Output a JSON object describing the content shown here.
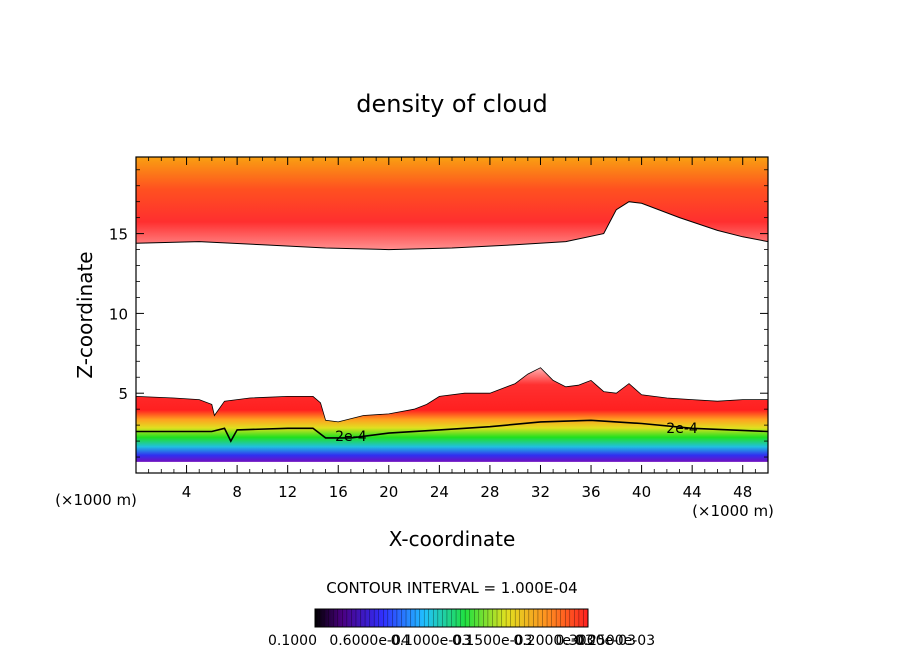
{
  "chart_data": {
    "type": "heatmap",
    "title": "density of cloud",
    "xlabel": "X-coordinate",
    "ylabel": "Z-coordinate",
    "x_unit_label": "(×1000 m)",
    "y_unit_label": "(×1000 m)",
    "xlim": [
      0,
      50
    ],
    "ylim": [
      0,
      19.8
    ],
    "x_ticks": [
      4,
      8,
      12,
      16,
      20,
      24,
      28,
      32,
      36,
      40,
      44,
      48
    ],
    "y_ticks": [
      5,
      10,
      15
    ],
    "contour_interval_label": "CONTOUR INTERVAL = 1.000E-04",
    "contour_line_labels": [
      {
        "text": "2e-4",
        "x": 17.0,
        "z": 2.2
      },
      {
        "text": "2e-4",
        "x": 43.2,
        "z": 2.7
      }
    ],
    "colorbar_labels": [
      "0.1000",
      "0.6000e-04",
      "0.1000e-03",
      "0.1500e-03",
      "0.2000e-03",
      "0.2500e-03",
      "0.3000e-03"
    ],
    "regions": {
      "upper_layer": {
        "top": 19.8,
        "lower_boundary": [
          [
            0,
            14.4
          ],
          [
            5,
            14.5
          ],
          [
            10,
            14.3
          ],
          [
            15,
            14.1
          ],
          [
            20,
            14.0
          ],
          [
            25,
            14.1
          ],
          [
            30,
            14.3
          ],
          [
            34,
            14.5
          ],
          [
            37,
            15.0
          ],
          [
            38,
            16.5
          ],
          [
            39,
            17.0
          ],
          [
            40,
            16.9
          ],
          [
            43,
            16.0
          ],
          [
            46,
            15.2
          ],
          [
            48,
            14.8
          ],
          [
            50,
            14.5
          ]
        ]
      },
      "lower_layer": {
        "bottom": 0.7,
        "upper_boundary": [
          [
            0,
            4.8
          ],
          [
            3,
            4.7
          ],
          [
            5,
            4.6
          ],
          [
            6,
            4.3
          ],
          [
            6.2,
            3.6
          ],
          [
            7,
            4.5
          ],
          [
            9,
            4.7
          ],
          [
            12,
            4.8
          ],
          [
            14,
            4.8
          ],
          [
            14.6,
            4.4
          ],
          [
            15,
            3.3
          ],
          [
            16,
            3.2
          ],
          [
            18,
            3.6
          ],
          [
            20,
            3.7
          ],
          [
            22,
            4.0
          ],
          [
            23,
            4.3
          ],
          [
            24,
            4.8
          ],
          [
            26,
            5.0
          ],
          [
            28,
            5.0
          ],
          [
            30,
            5.6
          ],
          [
            31,
            6.2
          ],
          [
            32,
            6.6
          ],
          [
            33,
            5.8
          ],
          [
            34,
            5.4
          ],
          [
            35,
            5.5
          ],
          [
            36,
            5.8
          ],
          [
            37,
            5.1
          ],
          [
            38,
            5.0
          ],
          [
            39,
            5.6
          ],
          [
            40,
            4.9
          ],
          [
            42,
            4.7
          ],
          [
            44,
            4.6
          ],
          [
            46,
            4.5
          ],
          [
            48,
            4.6
          ],
          [
            50,
            4.6
          ]
        ],
        "contour_2e4": [
          [
            0,
            2.6
          ],
          [
            4,
            2.6
          ],
          [
            6,
            2.6
          ],
          [
            7,
            2.8
          ],
          [
            7.5,
            2.0
          ],
          [
            8,
            2.7
          ],
          [
            12,
            2.8
          ],
          [
            14,
            2.8
          ],
          [
            15,
            2.2
          ],
          [
            17,
            2.2
          ],
          [
            20,
            2.5
          ],
          [
            24,
            2.7
          ],
          [
            28,
            2.9
          ],
          [
            32,
            3.2
          ],
          [
            36,
            3.3
          ],
          [
            40,
            3.1
          ],
          [
            44,
            2.8
          ],
          [
            50,
            2.6
          ]
        ]
      }
    },
    "colors": {
      "upper_layer_top": "#f9a011",
      "upper_layer_mid": "#ff2f2f",
      "upper_layer_edge": "#ff8a8a",
      "lower_layer_edge": "#ff9a9a",
      "lower_layer_red": "#ff2a2a",
      "lower_layer_orange": "#ff9a1a",
      "lower_layer_yellow": "#e8e82a",
      "lower_layer_green": "#1ee81e",
      "lower_layer_cyan": "#18c8e0",
      "lower_layer_blue": "#2a3cf0",
      "lower_layer_violet": "#7010c0",
      "colorbar_stops": [
        "#000000",
        "#4b0082",
        "#3030ff",
        "#20c0ff",
        "#20e040",
        "#e0e020",
        "#ff9020",
        "#ff2020"
      ]
    }
  }
}
